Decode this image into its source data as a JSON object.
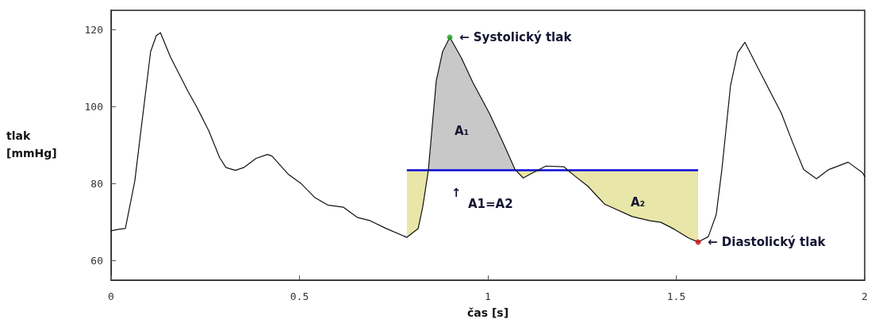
{
  "chart_data": {
    "type": "line",
    "xlabel": "čas [s]",
    "ylabel": "tlak\n[mmHg]",
    "xlim": [
      0,
      2
    ],
    "xticks": [
      0,
      0.5,
      1,
      1.5,
      2
    ],
    "ylim": [
      55,
      125
    ],
    "yticks": [
      60,
      80,
      100,
      120
    ],
    "grid": false,
    "marker": "none",
    "line_style": "solid",
    "series": [
      {
        "type": "area",
        "color": "#c8c8c8",
        "x": [
          0.842,
          0.863,
          0.88,
          0.899,
          0.93,
          0.96,
          1.004,
          1.042,
          1.072
        ],
        "values": [
          83.5,
          106.7,
          114.3,
          118,
          112.6,
          106.3,
          98.3,
          90.3,
          83.5
        ]
      },
      {
        "type": "area",
        "color": "#e8e6a8",
        "x": [
          0.785,
          0.785,
          0.815,
          0.827,
          0.842
        ],
        "values": [
          83.5,
          66.1,
          68.4,
          73.9,
          83.5
        ]
      },
      {
        "type": "area",
        "color": "#e8e6a8",
        "x": [
          1.072,
          1.094,
          1.116,
          1.154,
          1.202,
          1.227,
          1.265,
          1.31,
          1.383,
          1.43,
          1.459,
          1.495,
          1.533,
          1.558,
          1.558
        ],
        "values": [
          83.5,
          81.5,
          82.7,
          83.5,
          83.5,
          82.3,
          79.4,
          74.7,
          71.5,
          70.4,
          70,
          68.2,
          65.9,
          64.9,
          83.5
        ]
      },
      {
        "color": "#111111",
        "x": [
          0,
          0.021,
          0.038,
          0.063,
          0.08,
          0.105,
          0.12,
          0.131,
          0.158,
          0.204,
          0.227,
          0.259,
          0.288,
          0.305,
          0.33,
          0.352,
          0.385,
          0.415,
          0.427,
          0.47,
          0.505,
          0.541,
          0.575,
          0.617,
          0.653,
          0.688,
          0.73,
          0.785,
          0.815,
          0.827,
          0.842,
          0.863,
          0.88,
          0.899,
          0.93,
          0.96,
          1.004,
          1.042,
          1.072,
          1.094,
          1.116,
          1.154,
          1.202,
          1.227,
          1.265,
          1.31,
          1.383,
          1.43,
          1.459,
          1.495,
          1.533,
          1.558,
          1.585,
          1.606,
          1.621,
          1.644,
          1.663,
          1.682,
          1.718,
          1.756,
          1.779,
          1.808,
          1.838,
          1.872,
          1.905,
          1.956,
          1.994,
          2.0
        ],
        "values": [
          67.8,
          68.2,
          68.4,
          80.7,
          94.4,
          114.3,
          118.4,
          119.2,
          112.8,
          104,
          100,
          93.8,
          86.8,
          84.2,
          83.5,
          84.2,
          86.6,
          87.6,
          87.2,
          82.5,
          80,
          76.4,
          74.5,
          73.9,
          71.3,
          70.4,
          68.4,
          66.1,
          68.4,
          73.9,
          83.5,
          106.7,
          114.3,
          118,
          112.6,
          106.3,
          98.3,
          90.3,
          83.7,
          81.5,
          82.7,
          84.6,
          84.4,
          82.3,
          79.4,
          74.7,
          71.5,
          70.4,
          70,
          68.2,
          65.9,
          64.9,
          66.3,
          72,
          83.7,
          105.5,
          114,
          116.7,
          109.8,
          102.6,
          98.3,
          90.9,
          83.7,
          81.3,
          83.7,
          85.6,
          82.9,
          81.9
        ]
      },
      {
        "type": "scatter",
        "color": "#1fa01f",
        "x": [
          0.899
        ],
        "values": [
          118
        ]
      },
      {
        "type": "scatter",
        "color": "#d01010",
        "x": [
          1.558
        ],
        "values": [
          64.9
        ]
      }
    ],
    "ref_lines": [
      {
        "axis": "y",
        "value": 83.5,
        "color": "#0a0adc"
      }
    ],
    "annotations": [
      {
        "text": "← Systolický tlak",
        "x": 0.899,
        "y": 118
      },
      "A₁",
      "↑",
      "A1=A2",
      "A₂",
      {
        "text": "← Diastolický tlak",
        "x": 1.558,
        "y": 64.9
      }
    ]
  }
}
